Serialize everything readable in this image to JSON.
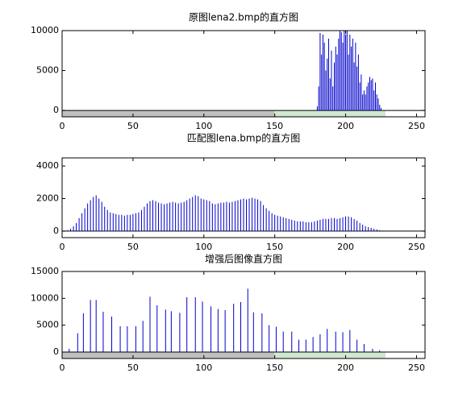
{
  "chart_data": [
    {
      "type": "stem",
      "title": "原图lena2.bmp的直方图",
      "color": "#0000cc",
      "xlim": [
        0,
        256
      ],
      "xticks": [
        0,
        50,
        100,
        150,
        200,
        250
      ],
      "ylim": [
        -800,
        10000
      ],
      "yticks": [
        0,
        5000,
        10000
      ],
      "x": [
        180,
        181,
        182,
        183,
        184,
        185,
        186,
        187,
        188,
        189,
        190,
        191,
        192,
        193,
        194,
        195,
        196,
        197,
        198,
        199,
        200,
        201,
        202,
        203,
        204,
        205,
        206,
        207,
        208,
        209,
        210,
        211,
        212,
        213,
        214,
        215,
        216,
        217,
        218,
        219,
        220,
        221,
        222,
        223,
        224,
        225
      ],
      "values": [
        500,
        3000,
        9700,
        7000,
        9500,
        8500,
        5000,
        6500,
        9000,
        4000,
        7500,
        3000,
        6000,
        8000,
        7000,
        9000,
        10000,
        9800,
        8500,
        10000,
        9500,
        10000,
        7000,
        9500,
        8000,
        9000,
        6000,
        8500,
        5500,
        7000,
        3500,
        4500,
        2000,
        2500,
        2000,
        3000,
        3500,
        4200,
        3800,
        4000,
        2500,
        3500,
        2000,
        1500,
        700,
        300
      ]
    },
    {
      "type": "stem",
      "title": "匹配图lena.bmp的直方图",
      "color": "#0000cc",
      "xlim": [
        0,
        256
      ],
      "xticks": [
        0,
        50,
        100,
        150,
        200,
        250
      ],
      "ylim": [
        -400,
        4500
      ],
      "yticks": [
        0,
        2000,
        4000
      ],
      "x": [
        2,
        4,
        6,
        8,
        10,
        12,
        14,
        16,
        18,
        20,
        22,
        24,
        26,
        28,
        30,
        32,
        34,
        36,
        38,
        40,
        42,
        44,
        46,
        48,
        50,
        52,
        54,
        56,
        58,
        60,
        62,
        64,
        66,
        68,
        70,
        72,
        74,
        76,
        78,
        80,
        82,
        84,
        86,
        88,
        90,
        92,
        94,
        96,
        98,
        100,
        102,
        104,
        106,
        108,
        110,
        112,
        114,
        116,
        118,
        120,
        122,
        124,
        126,
        128,
        130,
        132,
        134,
        136,
        138,
        140,
        142,
        144,
        146,
        148,
        150,
        152,
        154,
        156,
        158,
        160,
        162,
        164,
        166,
        168,
        170,
        172,
        174,
        176,
        178,
        180,
        182,
        184,
        186,
        188,
        190,
        192,
        194,
        196,
        198,
        200,
        202,
        204,
        206,
        208,
        210,
        212,
        214,
        216,
        218,
        220,
        222,
        224,
        226,
        228
      ],
      "values": [
        20,
        60,
        150,
        300,
        500,
        800,
        1100,
        1400,
        1700,
        1900,
        2100,
        2200,
        2000,
        1800,
        1500,
        1300,
        1150,
        1100,
        1050,
        1000,
        1000,
        950,
        1000,
        1000,
        1050,
        1100,
        1150,
        1300,
        1500,
        1700,
        1850,
        1900,
        1850,
        1750,
        1700,
        1650,
        1700,
        1750,
        1800,
        1750,
        1700,
        1750,
        1800,
        1900,
        2000,
        2100,
        2200,
        2150,
        2000,
        1950,
        1900,
        1850,
        1700,
        1650,
        1700,
        1750,
        1750,
        1800,
        1750,
        1800,
        1850,
        1900,
        1950,
        2000,
        1950,
        2000,
        2050,
        2000,
        1950,
        1850,
        1600,
        1400,
        1250,
        1100,
        1000,
        950,
        900,
        850,
        800,
        750,
        700,
        650,
        600,
        600,
        600,
        550,
        550,
        550,
        600,
        650,
        700,
        750,
        750,
        750,
        800,
        800,
        750,
        800,
        850,
        900,
        900,
        850,
        750,
        650,
        500,
        400,
        300,
        250,
        200,
        150,
        100,
        60,
        30,
        10
      ]
    },
    {
      "type": "stem",
      "title": "增强后图像直方图",
      "color": "#0000cc",
      "xlim": [
        0,
        256
      ],
      "xticks": [
        0,
        50,
        100,
        150,
        200,
        250
      ],
      "ylim": [
        -1200,
        15000
      ],
      "yticks": [
        0,
        5000,
        10000,
        15000
      ],
      "x": [
        5,
        11,
        15,
        20,
        24,
        29,
        35,
        41,
        46,
        52,
        57,
        62,
        67,
        73,
        77,
        83,
        88,
        94,
        99,
        105,
        110,
        115,
        121,
        126,
        131,
        135,
        141,
        146,
        151,
        156,
        162,
        167,
        172,
        177,
        182,
        187,
        193,
        198,
        203,
        208,
        213,
        219,
        224
      ],
      "values": [
        600,
        3500,
        7200,
        9700,
        9700,
        7500,
        6600,
        4800,
        4800,
        4800,
        5800,
        10300,
        8700,
        7900,
        7600,
        7300,
        10200,
        10200,
        9400,
        8500,
        8000,
        7800,
        9000,
        9300,
        11800,
        7400,
        7200,
        5000,
        4700,
        3800,
        3800,
        2300,
        2300,
        2800,
        3300,
        4300,
        3800,
        3700,
        4100,
        2300,
        1500,
        600,
        300
      ]
    }
  ]
}
